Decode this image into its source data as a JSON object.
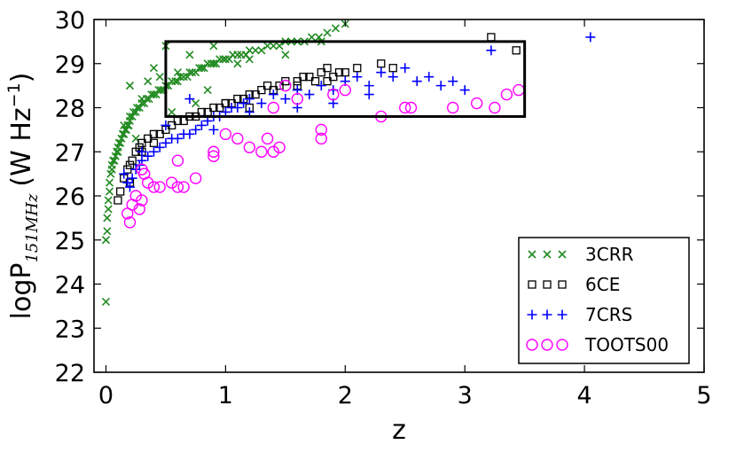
{
  "chart_data": {
    "type": "scatter",
    "title": "",
    "xlabel": "z",
    "ylabel": {
      "main": "logP",
      "subscript": "151MHz",
      "unit": "(W Hz",
      "exponent": "−1",
      "close": ")"
    },
    "xlim": [
      -0.1,
      5
    ],
    "ylim": [
      22,
      30
    ],
    "xticks": [
      "0",
      "1",
      "2",
      "3",
      "4",
      "5"
    ],
    "yticks": [
      "22",
      "23",
      "24",
      "25",
      "26",
      "27",
      "28",
      "29",
      "30"
    ],
    "grid": false,
    "legend_position": "lower-right",
    "annotations": [
      {
        "type": "rectangle",
        "x": [
          0.5,
          3.5
        ],
        "y": [
          27.8,
          29.5
        ]
      }
    ],
    "series": [
      {
        "name": "3CRR",
        "marker": "x",
        "color": "#228b22",
        "x": [
          0.0,
          0.0,
          0.01,
          0.01,
          0.02,
          0.02,
          0.03,
          0.03,
          0.04,
          0.05,
          0.05,
          0.06,
          0.07,
          0.08,
          0.09,
          0.1,
          0.1,
          0.11,
          0.12,
          0.13,
          0.14,
          0.15,
          0.16,
          0.17,
          0.18,
          0.19,
          0.2,
          0.2,
          0.22,
          0.23,
          0.25,
          0.26,
          0.28,
          0.3,
          0.32,
          0.34,
          0.36,
          0.38,
          0.4,
          0.42,
          0.44,
          0.46,
          0.48,
          0.5,
          0.52,
          0.55,
          0.58,
          0.6,
          0.62,
          0.65,
          0.68,
          0.7,
          0.72,
          0.75,
          0.78,
          0.8,
          0.82,
          0.85,
          0.88,
          0.9,
          0.92,
          0.95,
          0.98,
          1.0,
          1.03,
          1.06,
          1.1,
          1.13,
          1.17,
          1.2,
          1.25,
          1.3,
          1.35,
          1.4,
          1.45,
          1.5,
          1.55,
          1.6,
          1.66,
          1.72,
          1.78,
          1.85,
          1.92,
          2.0,
          0.2,
          0.3,
          0.4,
          0.5,
          0.6,
          0.7,
          0.9,
          1.1,
          0.15,
          0.25,
          0.35,
          0.45,
          0.55,
          0.75,
          0.85,
          1.2,
          1.5,
          1.8
        ],
        "y": [
          23.6,
          25.0,
          25.2,
          25.5,
          25.7,
          25.9,
          26.1,
          26.3,
          26.5,
          26.6,
          26.7,
          26.8,
          26.8,
          26.9,
          27.0,
          27.0,
          27.1,
          27.2,
          27.2,
          27.3,
          27.4,
          27.4,
          27.5,
          27.5,
          27.6,
          27.6,
          27.7,
          27.8,
          27.8,
          27.9,
          27.9,
          28.0,
          28.0,
          28.1,
          28.1,
          28.2,
          28.2,
          28.3,
          28.3,
          28.3,
          28.4,
          28.4,
          28.4,
          28.5,
          28.5,
          28.6,
          28.6,
          28.6,
          28.7,
          28.7,
          28.7,
          28.8,
          28.8,
          28.8,
          28.9,
          28.9,
          28.9,
          29.0,
          29.0,
          29.0,
          29.0,
          29.1,
          29.1,
          29.1,
          29.1,
          29.2,
          29.2,
          29.2,
          29.2,
          29.3,
          29.3,
          29.3,
          29.4,
          29.4,
          29.4,
          29.5,
          29.5,
          29.5,
          29.5,
          29.6,
          29.6,
          29.7,
          29.8,
          29.9,
          28.5,
          28.2,
          28.9,
          29.4,
          28.8,
          29.2,
          29.4,
          29.0,
          27.6,
          27.3,
          28.6,
          28.7,
          27.9,
          28.1,
          28.4,
          29.1,
          29.2,
          29.5
        ]
      },
      {
        "name": "6CE",
        "marker": "square",
        "color": "#000000",
        "x": [
          0.1,
          0.12,
          0.15,
          0.18,
          0.2,
          0.22,
          0.25,
          0.28,
          0.3,
          0.35,
          0.4,
          0.45,
          0.5,
          0.55,
          0.6,
          0.65,
          0.7,
          0.75,
          0.8,
          0.85,
          0.9,
          0.95,
          1.0,
          1.05,
          1.1,
          1.15,
          1.2,
          1.25,
          1.3,
          1.35,
          1.4,
          1.45,
          1.5,
          1.6,
          1.65,
          1.7,
          1.75,
          1.8,
          1.85,
          1.9,
          1.95,
          2.0,
          2.1,
          2.3,
          2.4,
          3.22,
          3.43,
          0.2,
          0.3,
          0.4,
          1.0,
          1.2,
          1.6,
          1.85
        ],
        "y": [
          25.9,
          26.1,
          26.4,
          26.6,
          26.7,
          26.8,
          27.0,
          27.1,
          27.2,
          27.3,
          27.4,
          27.4,
          27.5,
          27.6,
          27.7,
          27.7,
          27.8,
          27.8,
          27.9,
          27.9,
          28.0,
          28.0,
          28.1,
          28.1,
          28.2,
          28.2,
          28.3,
          28.3,
          28.4,
          28.5,
          28.4,
          28.5,
          28.6,
          28.6,
          28.7,
          28.7,
          28.6,
          28.8,
          28.9,
          28.7,
          28.8,
          28.8,
          28.9,
          29.0,
          28.9,
          29.6,
          29.3,
          26.3,
          27.0,
          27.2,
          28.1,
          28.0,
          28.5,
          28.6
        ]
      },
      {
        "name": "7CRS",
        "marker": "plus",
        "color": "#0000ff",
        "x": [
          0.15,
          0.18,
          0.2,
          0.22,
          0.25,
          0.28,
          0.3,
          0.35,
          0.4,
          0.45,
          0.5,
          0.55,
          0.6,
          0.65,
          0.7,
          0.75,
          0.8,
          0.85,
          0.9,
          0.95,
          1.0,
          1.05,
          1.1,
          1.15,
          1.2,
          1.3,
          1.4,
          1.5,
          1.6,
          1.7,
          1.8,
          1.9,
          2.0,
          2.1,
          2.2,
          2.3,
          2.4,
          2.5,
          2.6,
          2.7,
          2.8,
          2.9,
          3.0,
          3.22,
          4.05,
          0.3,
          0.5,
          0.7,
          0.9,
          1.2,
          1.6,
          1.9,
          2.2
        ],
        "y": [
          26.5,
          26.3,
          26.2,
          26.4,
          26.6,
          26.7,
          26.8,
          26.9,
          27.0,
          27.1,
          27.2,
          27.3,
          27.3,
          27.4,
          27.4,
          27.5,
          27.6,
          27.7,
          27.8,
          27.8,
          27.9,
          28.0,
          28.0,
          28.1,
          28.2,
          28.1,
          28.3,
          28.2,
          28.4,
          28.3,
          28.5,
          28.4,
          28.6,
          28.7,
          28.5,
          28.8,
          28.7,
          28.9,
          28.6,
          28.7,
          28.5,
          28.6,
          28.4,
          29.3,
          29.6,
          27.0,
          27.6,
          28.2,
          27.5,
          27.9,
          28.0,
          28.1,
          28.3
        ]
      },
      {
        "name": "TOOTS00",
        "marker": "circle",
        "color": "#ff00ff",
        "x": [
          0.18,
          0.2,
          0.22,
          0.25,
          0.28,
          0.3,
          0.32,
          0.35,
          0.4,
          0.45,
          0.55,
          0.6,
          0.65,
          0.75,
          0.9,
          1.0,
          1.1,
          1.3,
          1.35,
          1.4,
          1.45,
          1.5,
          1.6,
          1.8,
          1.9,
          2.0,
          2.3,
          2.5,
          2.55,
          2.9,
          3.1,
          3.25,
          3.35,
          3.45,
          0.3,
          0.6,
          0.9,
          1.2,
          1.4,
          1.8
        ],
        "y": [
          25.6,
          25.4,
          25.8,
          26.0,
          25.7,
          25.9,
          26.5,
          26.3,
          26.2,
          26.2,
          26.3,
          26.2,
          26.2,
          26.4,
          26.9,
          27.4,
          27.3,
          27.0,
          27.3,
          27.0,
          27.1,
          28.5,
          28.2,
          27.5,
          28.3,
          28.4,
          27.8,
          28.0,
          28.0,
          28.0,
          28.1,
          28.0,
          28.3,
          28.4,
          26.6,
          26.8,
          27.0,
          27.1,
          28.0,
          27.3
        ]
      }
    ]
  }
}
